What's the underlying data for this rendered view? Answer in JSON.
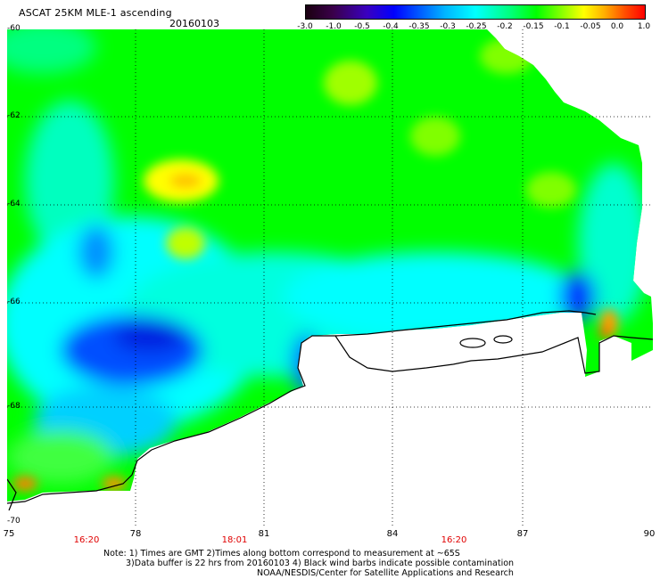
{
  "header": {
    "title": "ASCAT 25KM MLE-1 ascending",
    "date": "20160103"
  },
  "colorbar": {
    "ticks": [
      "-3.0",
      "-1.0",
      "-0.5",
      "-0.4",
      "-0.35",
      "-0.3",
      "-0.25",
      "-0.2",
      "-0.15",
      "-0.1",
      "-0.05",
      "0.0",
      "1.0"
    ]
  },
  "map": {
    "lat_labels": [
      "-60",
      "-62",
      "-64",
      "-66",
      "-68",
      "-70"
    ],
    "lon_labels": [
      "75",
      "78",
      "81",
      "84",
      "87",
      "90"
    ],
    "time_labels": [
      "16:20",
      "18:01",
      "16:20"
    ]
  },
  "notes": {
    "line1": "Note: 1) Times are GMT 2)Times along bottom correspond to measurement at ~65S",
    "line2": "3)Data buffer is 22 hrs from 20160103 4) Black wind barbs indicate possible contamination",
    "line3": "NOAA/NESDIS/Center for Satellite Applications and Research"
  },
  "colors": {
    "field_green": "#00ff00",
    "field_cyan": "#00ffff",
    "field_blue": "#0040ff",
    "field_yellow": "#ffff00",
    "field_orange": "#ff8000",
    "time_label": "#e00000"
  }
}
